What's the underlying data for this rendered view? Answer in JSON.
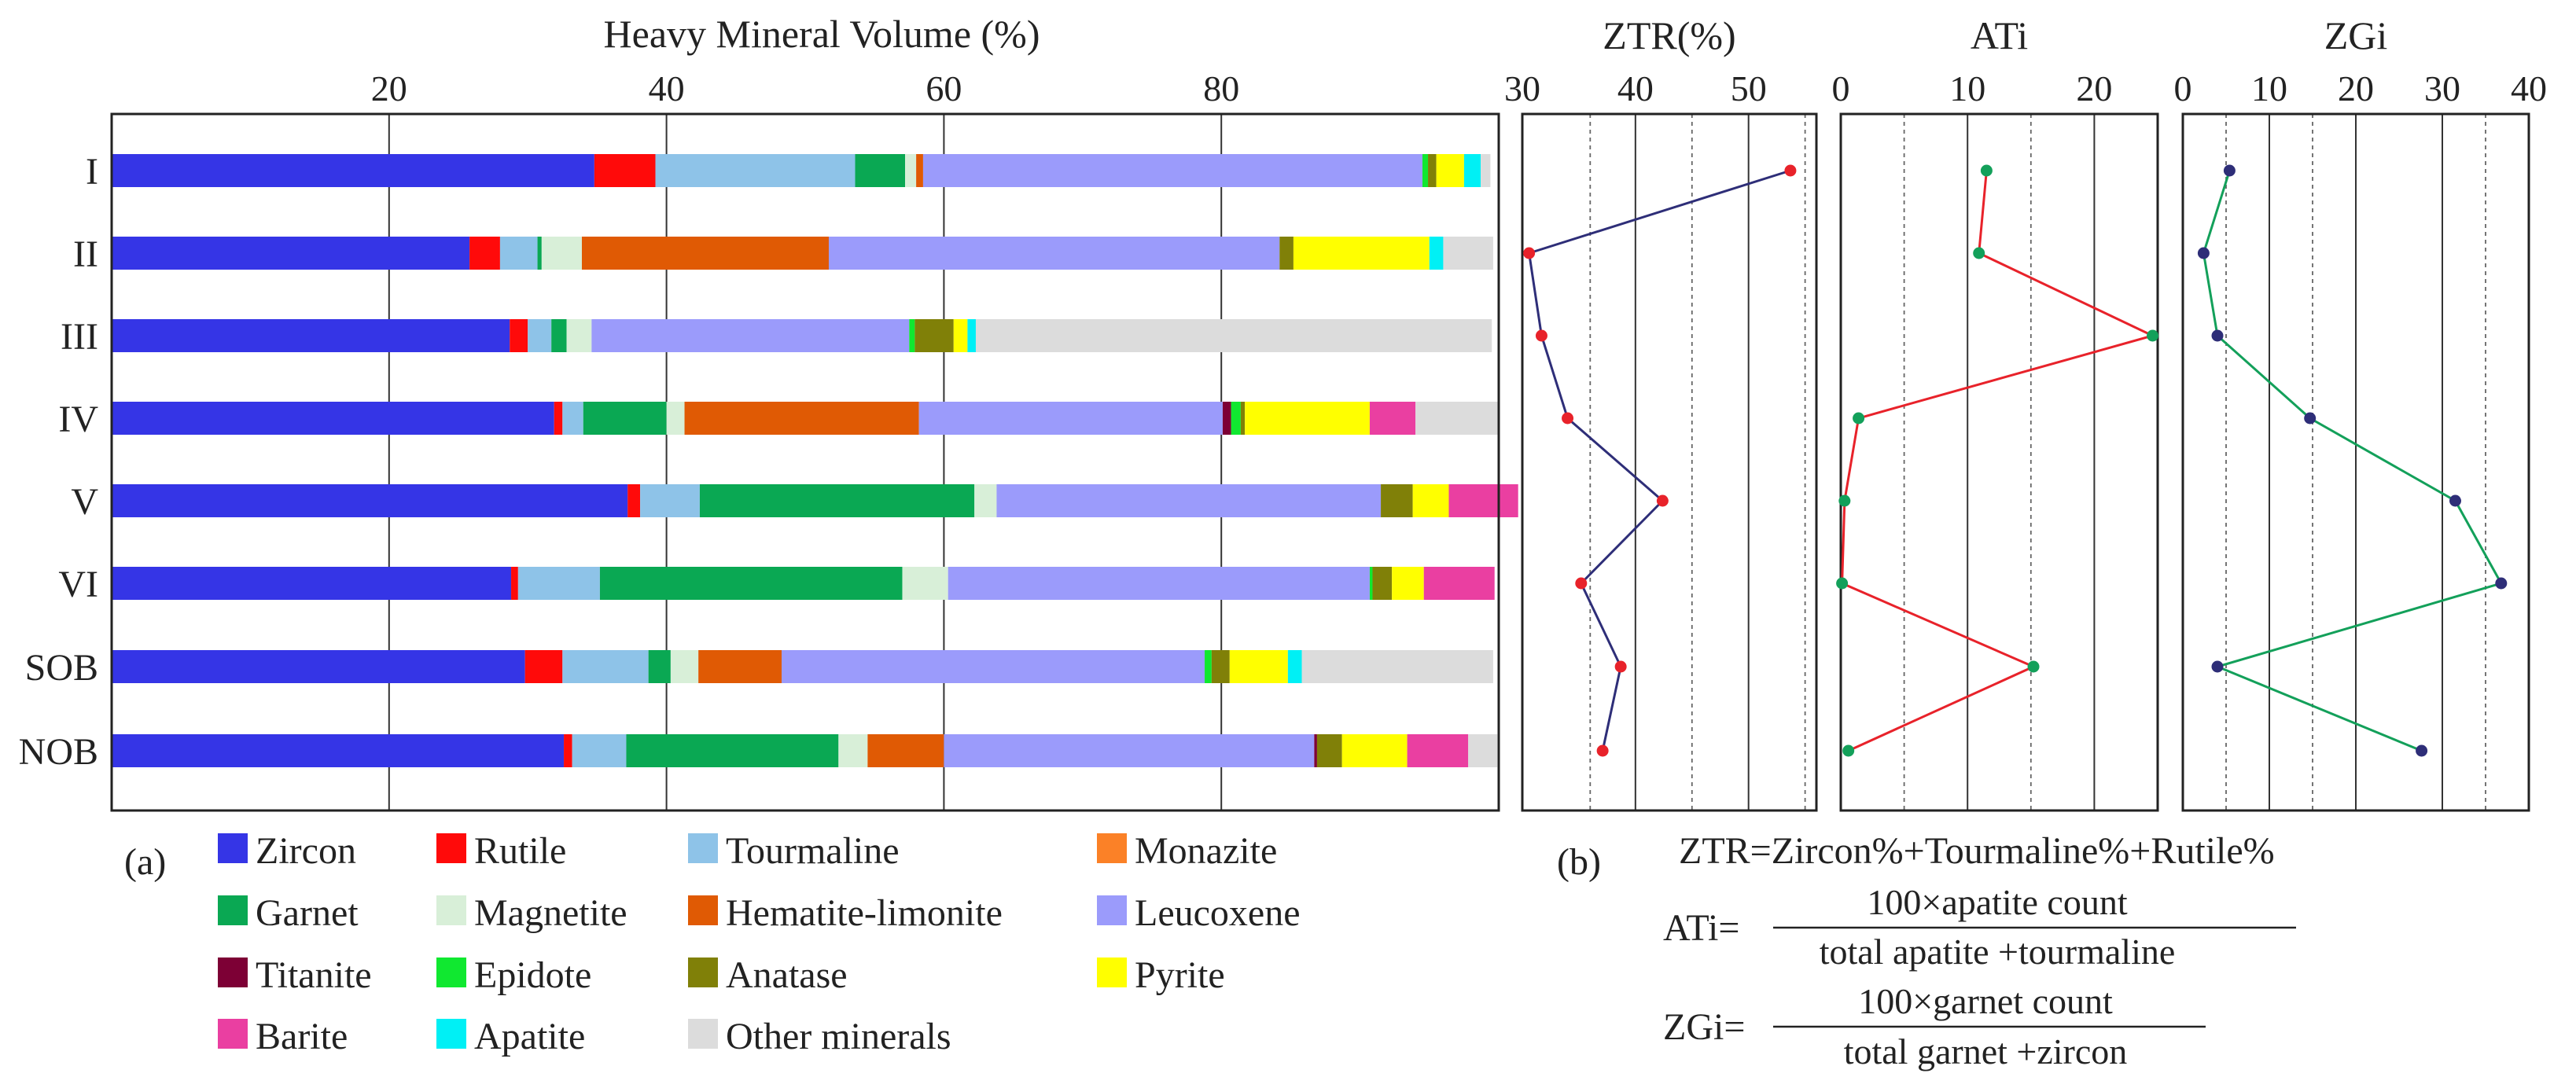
{
  "panel_labels": {
    "a": "(a)",
    "b": "(b)"
  },
  "formulas": {
    "ztr": "ZTR=Zircon%+Tourmaline%+Rutile%",
    "ati_lhs": "ATi=",
    "ati_num": "100×apatite count",
    "ati_den": "total apatite +tourmaline",
    "zgi_lhs": "ZGi=",
    "zgi_num": "100×garnet count",
    "zgi_den": "total garnet  +zircon"
  },
  "minerals": [
    {
      "name": "Zircon",
      "color": "#3535e6"
    },
    {
      "name": "Rutile",
      "color": "#ff0a0a"
    },
    {
      "name": "Tourmaline",
      "color": "#8ec3e8"
    },
    {
      "name": "Monazite",
      "color": "#fb8127"
    },
    {
      "name": "Garnet",
      "color": "#0aa853"
    },
    {
      "name": "Magnetite",
      "color": "#d8efd8"
    },
    {
      "name": "Hematite-limonite",
      "color": "#e05a04"
    },
    {
      "name": "Leucoxene",
      "color": "#9b9bfb"
    },
    {
      "name": "Titanite",
      "color": "#7d0035"
    },
    {
      "name": "Epidote",
      "color": "#10e830"
    },
    {
      "name": "Anatase",
      "color": "#808008"
    },
    {
      "name": "Pyrite",
      "color": "#ffff00"
    },
    {
      "name": "Barite",
      "color": "#ea3fa1"
    },
    {
      "name": "Apatite",
      "color": "#00f0f5"
    },
    {
      "name": "Other minerals",
      "color": "#dcdcdc"
    }
  ],
  "chart_data": [
    {
      "type": "bar",
      "orientation": "horizontal",
      "stacked": true,
      "title": "Heavy Mineral Volume (%)",
      "xlim": [
        0,
        100
      ],
      "xticks": [
        20,
        40,
        60,
        80
      ],
      "grid": true,
      "categories": [
        "I",
        "II",
        "III",
        "IV",
        "V",
        "VI",
        "SOB",
        "NOB"
      ],
      "series": [
        {
          "name": "Zircon",
          "values": [
            34.8,
            25.8,
            28.7,
            31.9,
            37.2,
            28.8,
            29.8,
            32.6
          ]
        },
        {
          "name": "Rutile",
          "values": [
            4.4,
            2.2,
            1.3,
            0.6,
            0.9,
            0.5,
            2.7,
            0.6
          ]
        },
        {
          "name": "Tourmaline",
          "values": [
            14.4,
            2.7,
            1.7,
            1.5,
            4.3,
            5.9,
            6.2,
            3.9
          ]
        },
        {
          "name": "Monazite",
          "values": [
            0,
            0,
            0,
            0,
            0,
            0,
            0,
            0
          ]
        },
        {
          "name": "Garnet",
          "values": [
            3.6,
            0.3,
            1.1,
            6.0,
            19.8,
            21.8,
            1.6,
            15.3
          ]
        },
        {
          "name": "Magnetite",
          "values": [
            0.8,
            2.9,
            1.8,
            1.3,
            1.6,
            3.3,
            2.0,
            2.1
          ]
        },
        {
          "name": "Hematite-limonite",
          "values": [
            0.5,
            17.8,
            0,
            16.9,
            0,
            0,
            6.0,
            5.5
          ]
        },
        {
          "name": "Leucoxene",
          "values": [
            36.0,
            32.5,
            22.9,
            21.9,
            27.7,
            30.4,
            30.5,
            26.7
          ]
        },
        {
          "name": "Titanite",
          "values": [
            0,
            0,
            0,
            0.6,
            0,
            0,
            0,
            0.2
          ]
        },
        {
          "name": "Epidote",
          "values": [
            0.4,
            0,
            0.4,
            0.7,
            0,
            0.2,
            0.5,
            0
          ]
        },
        {
          "name": "Anatase",
          "values": [
            0.6,
            1.0,
            2.8,
            0.3,
            2.3,
            1.4,
            1.3,
            1.8
          ]
        },
        {
          "name": "Pyrite",
          "values": [
            2.0,
            9.8,
            1.0,
            9.0,
            2.6,
            2.3,
            4.2,
            4.7
          ]
        },
        {
          "name": "Barite",
          "values": [
            0,
            0,
            0,
            3.3,
            5.0,
            5.1,
            0,
            4.4
          ]
        },
        {
          "name": "Apatite",
          "values": [
            1.2,
            1.0,
            0.6,
            0,
            0,
            0,
            1.0,
            0
          ]
        },
        {
          "name": "Other minerals",
          "values": [
            0.7,
            3.6,
            37.2,
            6.0,
            0,
            0,
            13.8,
            2.1
          ]
        }
      ]
    },
    {
      "type": "line",
      "title": "ZTR(%)",
      "xlim": [
        30,
        56
      ],
      "xticks": [
        30,
        40,
        50
      ],
      "ylabels": [
        "I",
        "II",
        "III",
        "IV",
        "V",
        "VI",
        "SOB",
        "NOB"
      ],
      "values": [
        53.7,
        30.6,
        31.7,
        34.0,
        42.4,
        35.2,
        38.7,
        37.1
      ],
      "line_color": "#2e2e78",
      "marker_color": "#e8222a"
    },
    {
      "type": "line",
      "title": "ATi",
      "xlim": [
        0,
        25
      ],
      "xticks": [
        0,
        10,
        20
      ],
      "ylabels": [
        "I",
        "II",
        "III",
        "IV",
        "V",
        "VI",
        "SOB",
        "NOB"
      ],
      "values": [
        11.5,
        10.9,
        24.6,
        1.4,
        0.3,
        0.1,
        15.2,
        0.6
      ],
      "line_color": "#e8222a",
      "marker_color": "#13a05a"
    },
    {
      "type": "line",
      "title": "ZGi",
      "xlim": [
        0,
        40
      ],
      "xticks": [
        0,
        10,
        20,
        30,
        40
      ],
      "ylabels": [
        "I",
        "II",
        "III",
        "IV",
        "V",
        "VI",
        "SOB",
        "NOB"
      ],
      "values": [
        5.4,
        2.4,
        4.0,
        14.7,
        31.5,
        36.8,
        4.0,
        27.6
      ],
      "line_color": "#13a05a",
      "marker_color": "#2e2e78"
    }
  ]
}
